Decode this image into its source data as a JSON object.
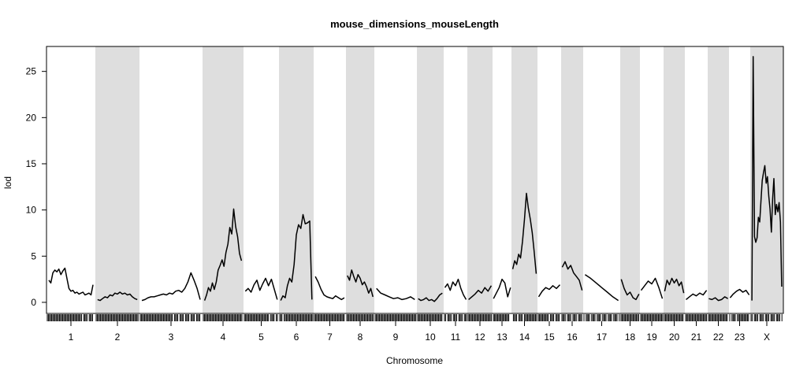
{
  "chart_data": {
    "type": "line",
    "title": "mouse_dimensions_mouseLength",
    "xlabel": "Chromosome",
    "ylabel": "lod",
    "ylim": [
      -1.2,
      27.7
    ],
    "yticks": [
      0,
      5,
      10,
      15,
      20,
      25
    ],
    "grid": false,
    "legend": "none",
    "colors": {
      "line": "#000000",
      "band": "#dedede",
      "rug": "#000000",
      "axis": "#000000"
    },
    "chromosomes": [
      {
        "name": "1",
        "shaded": false,
        "points": [
          2.4,
          2.1,
          3.2,
          3.5,
          3.3,
          3.6,
          3.0,
          3.4,
          3.7,
          2.6,
          1.5,
          1.2,
          1.3,
          1.0,
          1.1,
          0.9,
          1.0,
          1.1,
          0.8,
          0.9,
          1.0,
          0.8,
          1.9
        ]
      },
      {
        "name": "2",
        "shaded": true,
        "points": [
          0.3,
          0.2,
          0.4,
          0.6,
          0.5,
          0.8,
          0.7,
          1.0,
          0.9,
          1.1,
          0.9,
          1.0,
          0.8,
          0.9,
          0.6,
          0.4,
          0.3
        ]
      },
      {
        "name": "3",
        "shaded": false,
        "points": [
          0.2,
          0.3,
          0.5,
          0.6,
          0.6,
          0.7,
          0.8,
          0.9,
          0.8,
          1.0,
          0.9,
          1.2,
          1.3,
          1.1,
          1.5,
          2.2,
          3.2,
          2.4,
          1.5,
          0.3
        ]
      },
      {
        "name": "4",
        "shaded": true,
        "points": [
          0.2,
          0.8,
          1.6,
          1.2,
          2.1,
          1.4,
          2.2,
          3.5,
          4.0,
          4.6,
          3.9,
          5.4,
          6.3,
          8.1,
          7.4,
          10.1,
          8.2,
          7.1,
          5.3,
          4.5
        ]
      },
      {
        "name": "5",
        "shaded": false,
        "points": [
          1.2,
          1.5,
          1.1,
          1.9,
          2.4,
          1.3,
          2.0,
          2.6,
          1.8,
          2.5,
          1.4,
          0.3
        ]
      },
      {
        "name": "6",
        "shaded": true,
        "points": [
          0.2,
          0.7,
          0.5,
          1.8,
          2.6,
          2.2,
          4.1,
          7.3,
          8.4,
          8.0,
          9.5,
          8.5,
          8.6,
          8.8,
          0.3
        ]
      },
      {
        "name": "7",
        "shaded": false,
        "points": [
          2.8,
          2.2,
          1.4,
          0.8,
          0.6,
          0.5,
          0.4,
          0.7,
          0.5,
          0.3,
          0.5
        ]
      },
      {
        "name": "8",
        "shaded": true,
        "points": [
          2.9,
          2.4,
          3.5,
          2.8,
          2.2,
          3.0,
          2.6,
          1.9,
          2.2,
          1.7,
          1.0,
          1.5,
          0.6
        ]
      },
      {
        "name": "9",
        "shaded": false,
        "points": [
          1.5,
          1.0,
          0.8,
          0.6,
          0.4,
          0.5,
          0.3,
          0.4,
          0.6,
          0.3
        ]
      },
      {
        "name": "10",
        "shaded": true,
        "points": [
          0.4,
          0.2,
          0.3,
          0.5,
          0.2,
          0.3,
          0.1,
          0.4,
          0.8,
          1.0
        ]
      },
      {
        "name": "11",
        "shaded": false,
        "points": [
          1.6,
          2.0,
          1.3,
          2.2,
          1.8,
          2.5,
          1.5,
          0.8,
          0.3
        ]
      },
      {
        "name": "12",
        "shaded": true,
        "points": [
          0.3,
          0.6,
          0.9,
          1.3,
          1.0,
          1.6,
          1.2,
          1.8
        ]
      },
      {
        "name": "13",
        "shaded": false,
        "points": [
          0.4,
          1.0,
          1.6,
          2.5,
          2.1,
          0.6,
          1.6
        ]
      },
      {
        "name": "14",
        "shaded": true,
        "points": [
          3.6,
          4.5,
          4.1,
          5.2,
          4.8,
          6.6,
          9.0,
          11.8,
          10.2,
          9.0,
          7.5,
          5.4,
          3.1
        ]
      },
      {
        "name": "15",
        "shaded": false,
        "points": [
          0.6,
          1.2,
          1.6,
          1.4,
          1.8,
          1.5,
          1.9
        ]
      },
      {
        "name": "16",
        "shaded": true,
        "points": [
          3.8,
          4.4,
          3.6,
          4.0,
          3.2,
          2.8,
          2.4,
          1.3
        ]
      },
      {
        "name": "17",
        "shaded": false,
        "points": [
          3.0,
          2.6,
          2.1,
          1.6,
          1.1,
          0.6,
          0.2
        ]
      },
      {
        "name": "18",
        "shaded": true,
        "points": [
          2.5,
          1.5,
          0.8,
          1.1,
          0.5,
          0.3,
          0.9
        ]
      },
      {
        "name": "19",
        "shaded": false,
        "points": [
          1.3,
          1.8,
          2.3,
          2.0,
          2.6,
          1.6,
          0.4
        ]
      },
      {
        "name": "20",
        "shaded": true,
        "points": [
          1.2,
          2.4,
          1.9,
          2.6,
          2.1,
          2.5,
          1.8,
          2.2,
          1.0
        ]
      },
      {
        "name": "21",
        "shaded": false,
        "points": [
          0.3,
          0.6,
          0.9,
          0.7,
          1.0,
          0.8,
          1.3
        ]
      },
      {
        "name": "22",
        "shaded": true,
        "points": [
          0.4,
          0.3,
          0.5,
          0.2,
          0.3,
          0.6,
          0.4
        ]
      },
      {
        "name": "23",
        "shaded": false,
        "points": [
          0.5,
          0.9,
          1.2,
          1.4,
          1.1,
          1.3,
          0.8
        ]
      },
      {
        "name": "X",
        "shaded": true,
        "points": [
          0.2,
          26.6,
          7.1,
          6.5,
          7.0,
          9.2,
          8.7,
          11.0,
          13.2,
          14.1,
          14.8,
          12.9,
          13.6,
          11.5,
          10.1,
          7.6,
          11.2,
          13.4,
          9.5,
          10.6,
          9.8,
          10.8,
          8.7,
          1.7
        ]
      }
    ]
  }
}
